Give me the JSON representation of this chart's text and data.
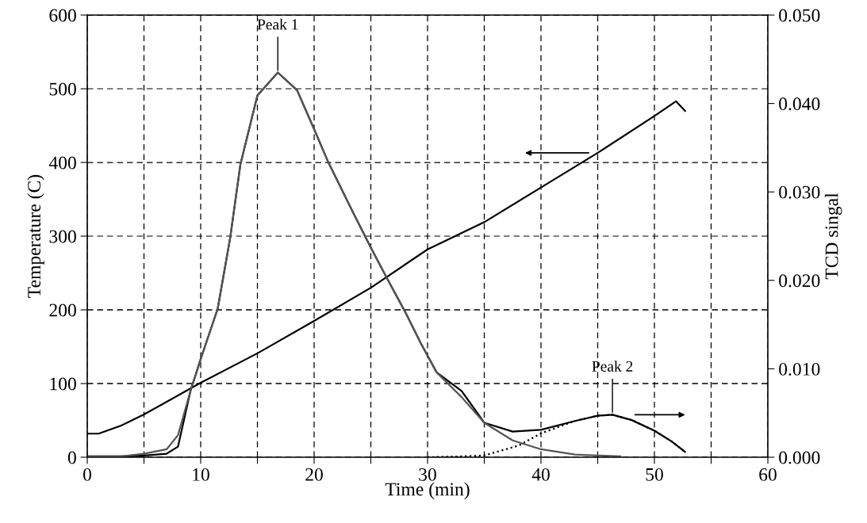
{
  "chart_data": {
    "type": "line",
    "xlabel": "Time (min)",
    "ylabel": "Temperature (C)",
    "y2label": "TCD singal",
    "xlim": [
      0,
      60
    ],
    "xticks": [
      0,
      {
        "value": 5,
        "label": null
      },
      10,
      {
        "value": 15,
        "label": null
      },
      20,
      {
        "value": 25,
        "label": null
      },
      30,
      {
        "value": 35,
        "label": null
      },
      40,
      {
        "value": 45,
        "label": null
      },
      50,
      {
        "value": 55,
        "label": null
      },
      60
    ],
    "ylim": [
      0,
      600
    ],
    "yticks": [
      0,
      100,
      200,
      300,
      400,
      500,
      600
    ],
    "y2lim": [
      0,
      0.05
    ],
    "y2ticks": [
      {
        "value": 0,
        "label": "0.000"
      },
      {
        "value": 0.01,
        "label": "0.010"
      },
      {
        "value": 0.02,
        "label": "0.020"
      },
      {
        "value": 0.03,
        "label": "0.030"
      },
      {
        "value": 0.04,
        "label": "0.040"
      },
      {
        "value": 0.05,
        "label": "0.050"
      }
    ],
    "grid": true,
    "legend": false,
    "annotations": [
      {
        "text": "Peak 1",
        "x": 16.8,
        "y": 522
      },
      {
        "text": "Peak 2",
        "x": 46.3,
        "y": 58
      }
    ],
    "series": [
      {
        "color": "#000000",
        "axis": "y",
        "line_style": "solid",
        "x": [
          0,
          1,
          3,
          5,
          10,
          15,
          20,
          25,
          30,
          35,
          40,
          45,
          50,
          51.9,
          52.7
        ],
        "values": [
          32,
          32,
          43,
          58,
          101,
          141,
          185,
          230,
          282,
          319,
          366,
          413,
          463,
          483,
          470
        ]
      },
      {
        "color": "#000000",
        "axis": "y2",
        "line_style": "solid",
        "x": [
          0,
          3,
          5,
          7,
          8,
          9.1,
          10,
          11.5,
          12.6,
          13.5,
          15,
          16.8,
          18.5,
          20,
          21.2,
          23.5,
          25,
          26.4,
          28,
          29.4,
          30.8,
          33,
          35,
          37.5,
          40,
          43,
          45,
          46.3,
          48,
          50,
          51.5,
          52.7
        ],
        "values": [
          0.0001,
          0.0001,
          0.0002,
          0.0004,
          0.0012,
          0.0075,
          0.0111,
          0.0168,
          0.0248,
          0.0331,
          0.0409,
          0.0435,
          0.0415,
          0.0371,
          0.0335,
          0.0275,
          0.0237,
          0.0203,
          0.0165,
          0.0129,
          0.0096,
          0.0075,
          0.0039,
          0.0029,
          0.0031,
          0.0041,
          0.0047,
          0.0048,
          0.0042,
          0.003,
          0.0018,
          0.0006
        ]
      },
      {
        "color": "#555555",
        "axis": "y2",
        "line_style": "solid",
        "x": [
          0,
          3,
          5,
          7,
          8,
          9.1,
          10,
          11.5,
          12.6,
          13.5,
          15,
          16.8,
          18.5,
          20,
          21.2,
          23.5,
          25,
          26.4,
          28,
          29.4,
          30.8,
          33,
          35,
          37.5,
          40,
          43,
          45,
          47
        ],
        "values": [
          0.0001,
          0.0001,
          0.0004,
          0.0009,
          0.0025,
          0.0075,
          0.0111,
          0.0168,
          0.0248,
          0.0331,
          0.0409,
          0.0435,
          0.0415,
          0.0371,
          0.0335,
          0.0275,
          0.0237,
          0.0203,
          0.0165,
          0.0129,
          0.0096,
          0.0068,
          0.0039,
          0.0019,
          0.0009,
          0.0003,
          0.0002,
          0.0001
        ]
      },
      {
        "color": "#000000",
        "axis": "y2",
        "line_style": "dotted",
        "x": [
          30,
          33,
          35,
          38,
          40,
          43,
          45,
          46.3,
          48,
          50,
          51.5,
          52.7
        ],
        "values": [
          0,
          0.0001,
          0.0002,
          0.0013,
          0.0027,
          0.0041,
          0.0047,
          0.0048,
          0.0042,
          0.003,
          0.0018,
          0.0006
        ]
      }
    ]
  }
}
